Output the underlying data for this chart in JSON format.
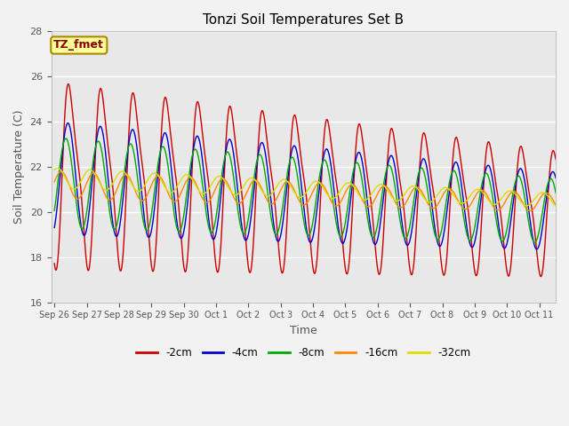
{
  "title": "Tonzi Soil Temperatures Set B",
  "xlabel": "Time",
  "ylabel": "Soil Temperature (C)",
  "ylim": [
    16,
    28
  ],
  "annotation": "TZ_fmet",
  "legend_labels": [
    "-2cm",
    "-4cm",
    "-8cm",
    "-16cm",
    "-32cm"
  ],
  "line_colors": [
    "#cc0000",
    "#0000cc",
    "#00aa00",
    "#ff8800",
    "#dddd00"
  ],
  "tick_dates": [
    "Sep 26",
    "Sep 27",
    "Sep 28",
    "Sep 29",
    "Sep 30",
    "Oct 1",
    "Oct 2",
    "Oct 3",
    "Oct 4",
    "Oct 5",
    "Oct 6",
    "Oct 7",
    "Oct 8",
    "Oct 9",
    "Oct 10",
    "Oct 11"
  ],
  "tick_positions": [
    0,
    1,
    2,
    3,
    4,
    5,
    6,
    7,
    8,
    9,
    10,
    11,
    12,
    13,
    14,
    15
  ],
  "yticks": [
    16,
    18,
    20,
    22,
    24,
    26,
    28
  ],
  "figsize": [
    6.4,
    4.8
  ],
  "dpi": 100
}
